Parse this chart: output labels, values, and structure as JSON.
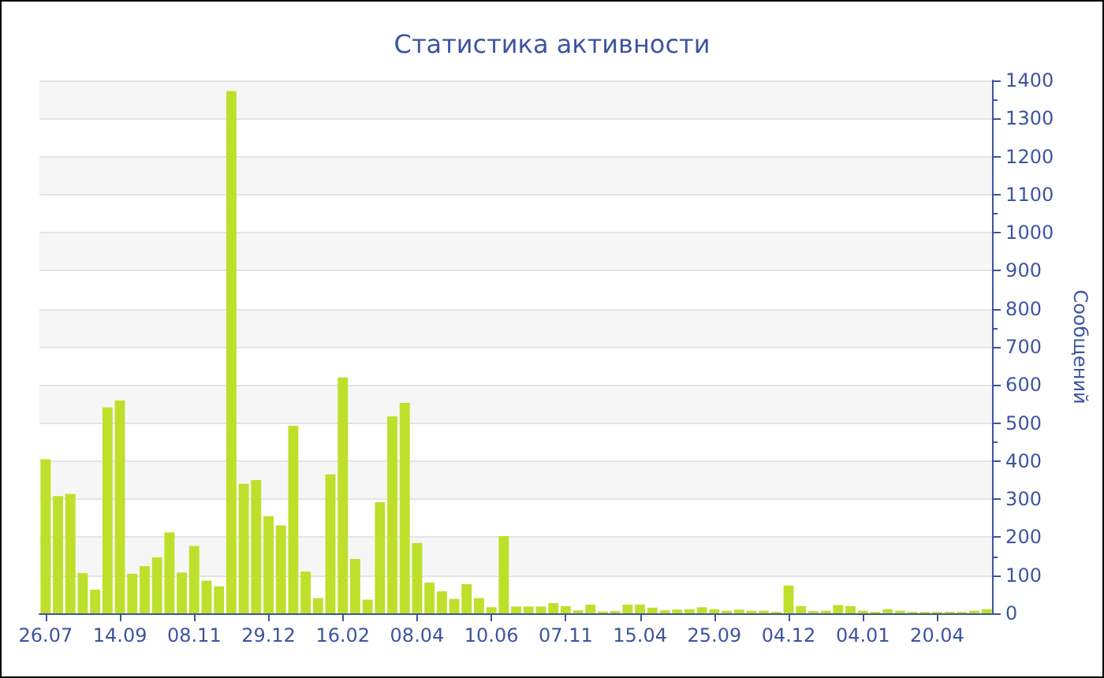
{
  "chart_data": {
    "type": "bar",
    "title": "Статистика активности",
    "ylabel": "Сообщений",
    "categories": [
      "26.07",
      null,
      null,
      null,
      null,
      null,
      "14.09",
      null,
      null,
      null,
      null,
      null,
      "08.11",
      null,
      null,
      null,
      null,
      null,
      "29.12",
      null,
      null,
      null,
      null,
      null,
      "16.02",
      null,
      null,
      null,
      null,
      null,
      "08.04",
      null,
      null,
      null,
      null,
      null,
      "10.06",
      null,
      null,
      null,
      null,
      null,
      "07.11",
      null,
      null,
      null,
      null,
      null,
      "15.04",
      null,
      null,
      null,
      null,
      null,
      "25.09",
      null,
      null,
      null,
      null,
      null,
      "04.12",
      null,
      null,
      null,
      null,
      null,
      "04.01",
      null,
      null,
      null,
      null,
      null,
      "20.04",
      null,
      null,
      null,
      null
    ],
    "values": [
      405,
      308,
      314,
      106,
      62,
      541,
      559,
      104,
      124,
      147,
      213,
      107,
      177,
      86,
      71,
      1372,
      340,
      350,
      255,
      231,
      493,
      110,
      40,
      365,
      620,
      143,
      36,
      292,
      517,
      553,
      185,
      81,
      58,
      38,
      77,
      40,
      16,
      203,
      18,
      18,
      18,
      27,
      19,
      8,
      23,
      5,
      6,
      23,
      23,
      15,
      8,
      10,
      11,
      16,
      11,
      7,
      10,
      7,
      7,
      4,
      73,
      19,
      6,
      7,
      22,
      19,
      7,
      4,
      11,
      7,
      4,
      4,
      4,
      4,
      4,
      7,
      11
    ],
    "color": "#bde02a",
    "ylim": [
      0,
      1400
    ],
    "yticks": [
      0,
      100,
      200,
      300,
      400,
      500,
      600,
      700,
      800,
      900,
      1000,
      1100,
      1200,
      1300,
      1400
    ],
    "grid": "y"
  }
}
